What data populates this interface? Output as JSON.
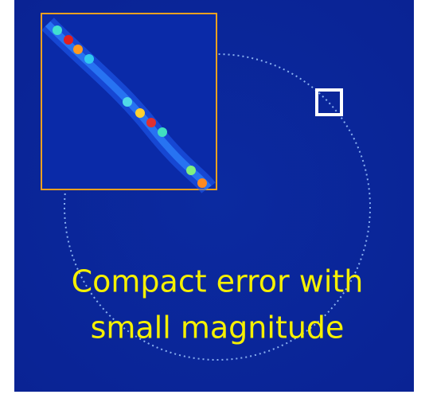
{
  "caption": {
    "lines": [
      "Compact error with",
      "small magnitude"
    ]
  }
}
